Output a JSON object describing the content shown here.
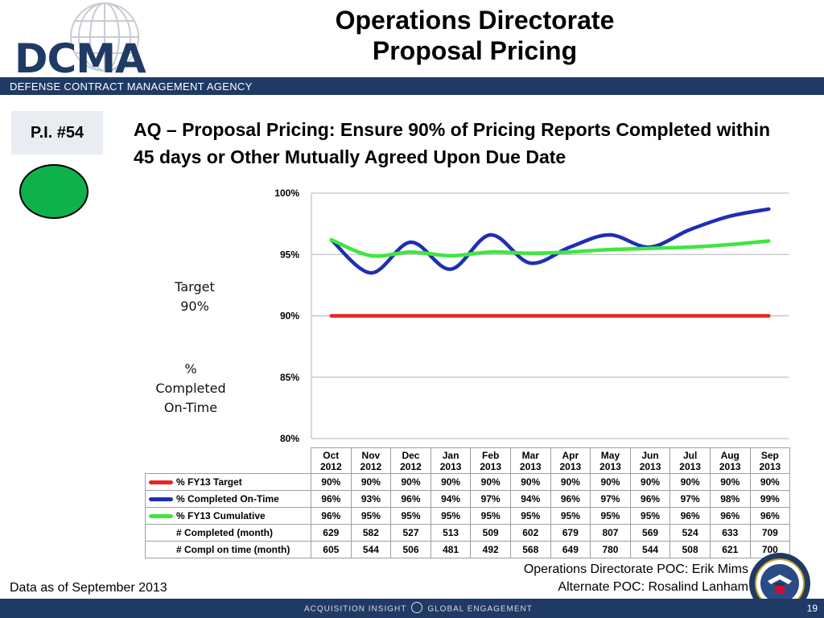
{
  "header": {
    "logo_text": "DCMA",
    "title_line1": "Operations Directorate",
    "title_line2": "Proposal Pricing",
    "agency": "DEFENSE CONTRACT MANAGEMENT AGENCY"
  },
  "indicator": {
    "label": "P.I. #54",
    "status_color": "#0fb24a"
  },
  "metric_title": "AQ – Proposal Pricing: Ensure 90% of Pricing Reports Completed within 45 days or Other Mutually Agreed Upon Due Date",
  "side_labels": {
    "target_line1": "Target",
    "target_line2": "90%",
    "pct_line1": "%",
    "pct_line2": "Completed",
    "pct_line3": "On-Time"
  },
  "chart_data": {
    "type": "line",
    "categories": [
      "Oct 2012",
      "Nov 2012",
      "Dec 2012",
      "Jan 2013",
      "Feb 2013",
      "Mar 2013",
      "Apr 2013",
      "May 2013",
      "Jun 2013",
      "Jul 2013",
      "Aug 2013",
      "Sep 2013"
    ],
    "yticks": [
      "100%",
      "95%",
      "90%",
      "85%",
      "80%"
    ],
    "ylim": [
      80,
      100
    ],
    "grid": true,
    "series": [
      {
        "name": "% FY13 Target",
        "color": "#e82424",
        "values": [
          90,
          90,
          90,
          90,
          90,
          90,
          90,
          90,
          90,
          90,
          90,
          90
        ]
      },
      {
        "name": "% Completed On-Time",
        "color": "#1e2fb4",
        "values": [
          96.2,
          93.5,
          96.0,
          93.8,
          96.6,
          94.3,
          95.6,
          96.6,
          95.6,
          97.0,
          98.1,
          98.7
        ]
      },
      {
        "name": "% FY13 Cumulative",
        "color": "#3fe63f",
        "values": [
          96.2,
          94.9,
          95.2,
          94.9,
          95.2,
          95.1,
          95.2,
          95.4,
          95.5,
          95.6,
          95.8,
          96.1
        ]
      }
    ]
  },
  "table": {
    "months": [
      {
        "m": "Oct",
        "y": "2012"
      },
      {
        "m": "Nov",
        "y": "2012"
      },
      {
        "m": "Dec",
        "y": "2012"
      },
      {
        "m": "Jan",
        "y": "2013"
      },
      {
        "m": "Feb",
        "y": "2013"
      },
      {
        "m": "Mar",
        "y": "2013"
      },
      {
        "m": "Apr",
        "y": "2013"
      },
      {
        "m": "May",
        "y": "2013"
      },
      {
        "m": "Jun",
        "y": "2013"
      },
      {
        "m": "Jul",
        "y": "2013"
      },
      {
        "m": "Aug",
        "y": "2013"
      },
      {
        "m": "Sep",
        "y": "2013"
      }
    ],
    "rows": [
      {
        "label": "% FY13 Target",
        "swatch": "#e82424",
        "cells": [
          "90%",
          "90%",
          "90%",
          "90%",
          "90%",
          "90%",
          "90%",
          "90%",
          "90%",
          "90%",
          "90%",
          "90%"
        ]
      },
      {
        "label": "% Completed On-Time",
        "swatch": "#1e2fb4",
        "cells": [
          "96%",
          "93%",
          "96%",
          "94%",
          "97%",
          "94%",
          "96%",
          "97%",
          "96%",
          "97%",
          "98%",
          "99%"
        ]
      },
      {
        "label": "% FY13 Cumulative",
        "swatch": "#3fe63f",
        "cells": [
          "96%",
          "95%",
          "95%",
          "95%",
          "95%",
          "95%",
          "95%",
          "95%",
          "95%",
          "96%",
          "96%",
          "96%"
        ]
      },
      {
        "label": "# Completed (month)",
        "swatch": "",
        "cells": [
          "629",
          "582",
          "527",
          "513",
          "509",
          "602",
          "679",
          "807",
          "569",
          "524",
          "633",
          "709"
        ]
      },
      {
        "label": "# Compl on time (month)",
        "swatch": "",
        "cells": [
          "605",
          "544",
          "506",
          "481",
          "492",
          "568",
          "649",
          "780",
          "544",
          "508",
          "621",
          "700"
        ]
      }
    ]
  },
  "poc": {
    "primary": "Operations Directorate POC:  Erik Mims",
    "alternate": "Alternate POC: Rosalind Lanham"
  },
  "data_as_of": "Data as of September 2013",
  "footer": {
    "left": "ACQUISITION INSIGHT",
    "right": "GLOBAL ENGAGEMENT",
    "page": "19"
  }
}
